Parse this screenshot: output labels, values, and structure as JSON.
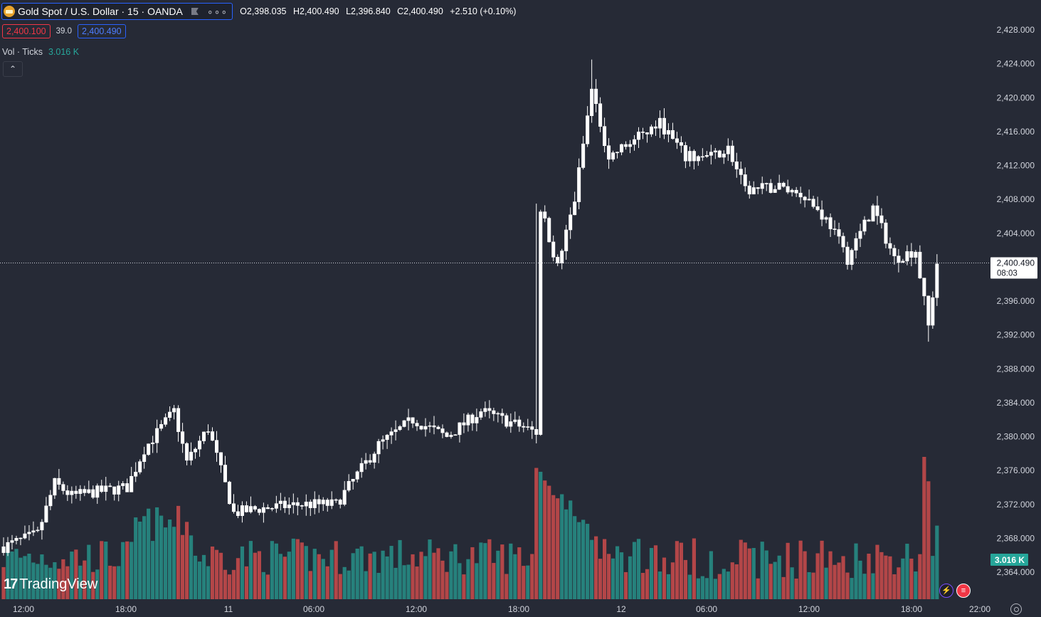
{
  "symbol": {
    "title": "Gold Spot / U.S. Dollar · 15 · OANDA",
    "more": "∘∘∘",
    "ohlc": {
      "open": "O2,398.035",
      "high": "H2,400.490",
      "low": "L2,396.840",
      "close": "C2,400.490",
      "change": "+2.510 (+0.10%)"
    }
  },
  "quote": {
    "bid": "2,400.100",
    "spread": "39.0",
    "ask": "2,400.490"
  },
  "volume_indicator": {
    "label": "Vol · Ticks",
    "value": "3.016 K"
  },
  "collapse_icon": "chevron-up-icon",
  "last_price": {
    "value": "2,400.490",
    "countdown": "08:03"
  },
  "volume_badge": "3.016 K",
  "logo": "TradingView",
  "colors": {
    "bg": "#262a36",
    "up": "#ffffff",
    "down": "#ffffff",
    "vol_up": "#26a69a",
    "vol_down": "#ef5350",
    "axis_text": "#d1d4dc"
  },
  "chart_data": {
    "type": "candlestick",
    "ylim": [
      2360.0,
      2430.0
    ],
    "y_ticks": [
      "2,428.000",
      "2,424.000",
      "2,420.000",
      "2,416.000",
      "2,412.000",
      "2,408.000",
      "2,404.000",
      "2,400.000",
      "2,396.000",
      "2,392.000",
      "2,388.000",
      "2,384.000",
      "2,380.000",
      "2,376.000",
      "2,372.000",
      "2,368.000",
      "2,364.000"
    ],
    "x_ticks": [
      "12:00",
      "18:00",
      "11",
      "06:00",
      "12:00",
      "18:00",
      "12",
      "06:00",
      "12:00",
      "18:00",
      "22:00"
    ],
    "anchors": [
      {
        "t": 0,
        "p": 2367.0
      },
      {
        "t": 8,
        "p": 2368.5
      },
      {
        "t": 12,
        "p": 2374.5
      },
      {
        "t": 16,
        "p": 2373.0
      },
      {
        "t": 22,
        "p": 2373.5
      },
      {
        "t": 29,
        "p": 2374.0
      },
      {
        "t": 33,
        "p": 2378.5
      },
      {
        "t": 40,
        "p": 2383.0
      },
      {
        "t": 43,
        "p": 2377.0
      },
      {
        "t": 48,
        "p": 2381.0
      },
      {
        "t": 54,
        "p": 2371.0
      },
      {
        "t": 60,
        "p": 2371.5
      },
      {
        "t": 70,
        "p": 2372.0
      },
      {
        "t": 78,
        "p": 2372.0
      },
      {
        "t": 88,
        "p": 2379.0
      },
      {
        "t": 96,
        "p": 2382.0
      },
      {
        "t": 104,
        "p": 2380.0
      },
      {
        "t": 112,
        "p": 2383.0
      },
      {
        "t": 125,
        "p": 2380.5
      },
      {
        "t": 126,
        "p": 2407.0
      },
      {
        "t": 130,
        "p": 2400.0
      },
      {
        "t": 134,
        "p": 2408.0
      },
      {
        "t": 138,
        "p": 2421.0
      },
      {
        "t": 142,
        "p": 2413.0
      },
      {
        "t": 148,
        "p": 2415.0
      },
      {
        "t": 154,
        "p": 2417.0
      },
      {
        "t": 160,
        "p": 2413.0
      },
      {
        "t": 166,
        "p": 2413.0
      },
      {
        "t": 170,
        "p": 2414.0
      },
      {
        "t": 174,
        "p": 2409.0
      },
      {
        "t": 182,
        "p": 2409.5
      },
      {
        "t": 188,
        "p": 2408.5
      },
      {
        "t": 194,
        "p": 2405.0
      },
      {
        "t": 198,
        "p": 2401.0
      },
      {
        "t": 204,
        "p": 2407.0
      },
      {
        "t": 209,
        "p": 2401.0
      },
      {
        "t": 214,
        "p": 2402.0
      },
      {
        "t": 217,
        "p": 2393.0
      },
      {
        "t": 219,
        "p": 2400.49
      }
    ],
    "last_price": 2400.49,
    "volume": {
      "max_value": 3.5,
      "last_value": 3.016,
      "unit": "K"
    }
  }
}
